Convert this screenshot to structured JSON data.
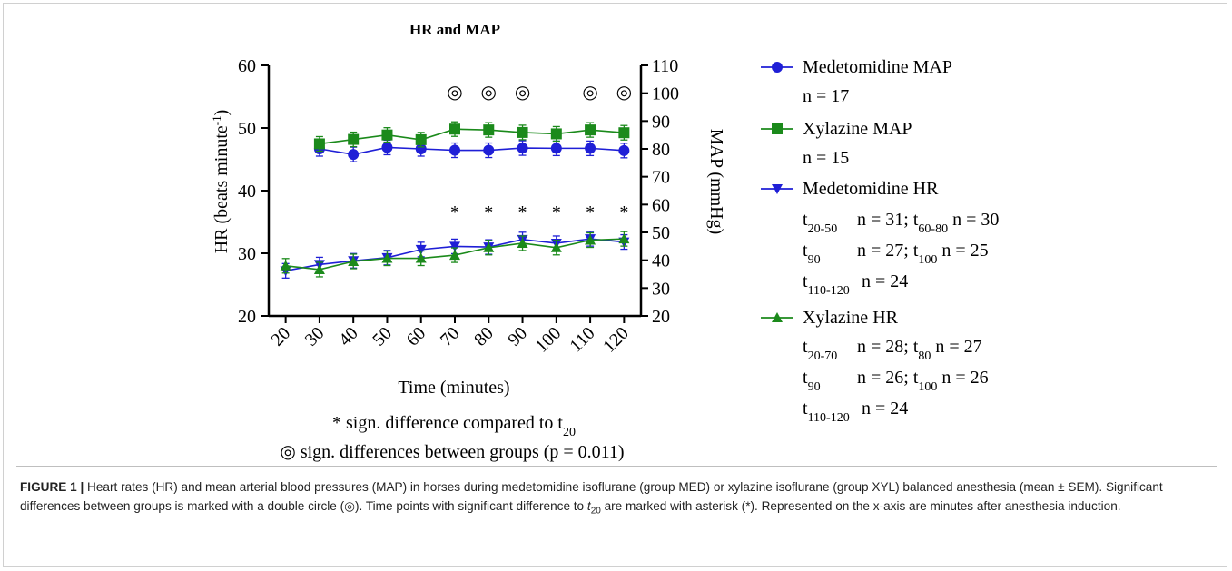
{
  "chart_data": {
    "type": "line",
    "title": "HR and MAP",
    "xlabel": "Time (minutes)",
    "ylabel_left": "HR (beats minute",
    "ylabel_left_sup": "-1",
    "ylabel_left_close": ")",
    "ylabel_right": "MAP (mmHg)",
    "x": [
      20,
      30,
      40,
      50,
      60,
      70,
      80,
      90,
      100,
      110,
      120
    ],
    "x_tick_labels": [
      "20",
      "30",
      "40",
      "50",
      "60",
      "70",
      "80",
      "90",
      "100",
      "110",
      "120"
    ],
    "ylim_left": [
      20,
      60
    ],
    "yticks_left": [
      "20",
      "30",
      "40",
      "50",
      "60"
    ],
    "ylim_right": [
      20,
      110
    ],
    "yticks_right": [
      "20",
      "30",
      "40",
      "50",
      "60",
      "70",
      "80",
      "90",
      "100",
      "110"
    ],
    "series": [
      {
        "name": "Medetomidine MAP",
        "axis": "right",
        "marker": "circle",
        "color": "#1f1fd6",
        "x": [
          30,
          40,
          50,
          60,
          70,
          80,
          90,
          100,
          110,
          120
        ],
        "values": [
          80.0,
          78.0,
          80.5,
          80.0,
          79.5,
          79.5,
          80.3,
          80.2,
          80.2,
          79.4
        ],
        "n_text": [
          "n = 17"
        ]
      },
      {
        "name": "Xylazine MAP",
        "axis": "right",
        "marker": "square",
        "color": "#1b8a1b",
        "x": [
          30,
          40,
          50,
          60,
          70,
          80,
          90,
          100,
          110,
          120
        ],
        "values": [
          81.8,
          83.4,
          85.0,
          83.3,
          87.1,
          86.8,
          85.9,
          85.4,
          86.8,
          85.8
        ],
        "n_text": [
          "n = 15"
        ]
      },
      {
        "name": "Medetomidine HR",
        "axis": "left",
        "marker": "triangle-down",
        "color": "#1f1fd6",
        "x": [
          20,
          30,
          40,
          50,
          60,
          70,
          80,
          90,
          100,
          110,
          120
        ],
        "values": [
          27.2,
          28.2,
          28.8,
          29.3,
          30.6,
          31.1,
          31.0,
          32.2,
          31.6,
          32.3,
          31.8
        ]
      },
      {
        "name": "Xylazine HR",
        "axis": "left",
        "marker": "triangle-up",
        "color": "#1b8a1b",
        "x": [
          20,
          30,
          40,
          50,
          60,
          70,
          80,
          90,
          100,
          110,
          120
        ],
        "values": [
          28.0,
          27.4,
          28.7,
          29.2,
          29.2,
          29.7,
          30.9,
          31.6,
          30.9,
          32.1,
          32.3
        ]
      }
    ],
    "group_diff_marks": {
      "symbol": "◎",
      "x": [
        70,
        80,
        90,
        110,
        120
      ]
    },
    "t20_diff_marks": {
      "symbol": "*",
      "x": [
        70,
        80,
        90,
        100,
        110,
        120
      ]
    },
    "grid": false,
    "legend_placement": "right"
  },
  "legend_n": {
    "med_hr": [
      {
        "t": "t",
        "sub": "20-50",
        "text1": "n = 31; t",
        "sub2": "60-80",
        "text2": " n = 30"
      },
      {
        "t": "t",
        "sub": "90",
        "text1": "n = 27; t",
        "sub2": "100",
        "text2": "  n = 25"
      },
      {
        "t": "t",
        "sub": "110-120",
        "text1": " n = 24",
        "sub2": "",
        "text2": ""
      }
    ],
    "xyl_hr": [
      {
        "t": "t",
        "sub": "20-70",
        "text1": "n = 28; t",
        "sub2": "80",
        "text2": "     n = 27"
      },
      {
        "t": "t",
        "sub": "90",
        "text1": "n = 26; t",
        "sub2": "100",
        "text2": "  n = 26"
      },
      {
        "t": "t",
        "sub": "110-120",
        "text1": " n = 24",
        "sub2": "",
        "text2": ""
      }
    ]
  },
  "notes": {
    "asterisk_note": "* sign. difference compared to t",
    "asterisk_note_sub": "20",
    "circle_note": "◎ sign. differences between groups (p = 0.011)"
  },
  "caption": {
    "label": "FIGURE 1 |",
    "text": " Heart rates (HR) and mean arterial blood pressures (MAP) in horses during medetomidine isoflurane (group MED) or xylazine isoflurane (group XYL) balanced anesthesia (mean ± SEM). Significant differences between groups is marked with a double circle (◎). Time points with significant difference to ",
    "t_italic": "t",
    "t_sub": "20",
    "text_end": " are marked with asterisk (*). Represented on the x-axis are minutes after anesthesia induction."
  }
}
